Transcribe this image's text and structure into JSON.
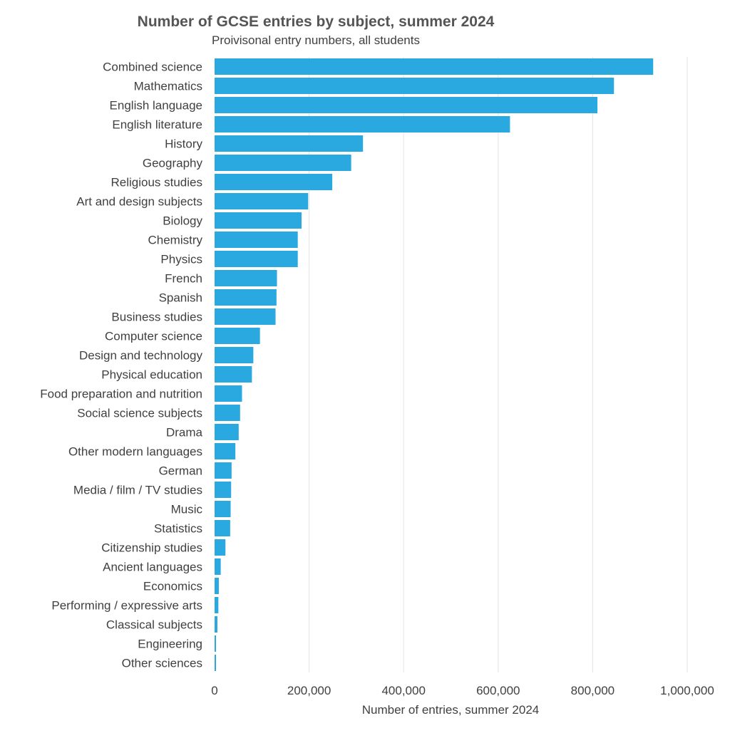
{
  "chart_data": {
    "type": "bar",
    "orientation": "horizontal",
    "title": "Number of GCSE entries by subject, summer 2024",
    "subtitle": "Proivisonal entry numbers, all students",
    "xlabel": "Number of entries, summer 2024",
    "ylabel": "",
    "xlim": [
      0,
      1000000
    ],
    "xticks": [
      0,
      200000,
      400000,
      600000,
      800000,
      1000000
    ],
    "xtick_labels": [
      "0",
      "200,000",
      "400,000",
      "600,000",
      "800,000",
      "1,000,000"
    ],
    "grid": "vertical",
    "legend": "none",
    "categories": [
      "Combined science",
      "Mathematics",
      "English language",
      "English literature",
      "History",
      "Geography",
      "Religious studies",
      "Art and design subjects",
      "Biology",
      "Chemistry",
      "Physics",
      "French",
      "Spanish",
      "Business studies",
      "Computer science",
      "Design and technology",
      "Physical education",
      "Food preparation and nutrition",
      "Social science subjects",
      "Drama",
      "Other modern languages",
      "German",
      "Media / film / TV studies",
      "Music",
      "Statistics",
      "Citizenship studies",
      "Ancient languages",
      "Economics",
      "Performing / expressive arts",
      "Classical subjects",
      "Engineering",
      "Other sciences"
    ],
    "values": [
      928000,
      845000,
      810000,
      625000,
      314000,
      289000,
      249000,
      198000,
      184000,
      176000,
      176000,
      132000,
      131000,
      129000,
      96000,
      82000,
      79000,
      58000,
      54000,
      51000,
      44000,
      36000,
      35000,
      34000,
      33000,
      23000,
      13000,
      9000,
      8000,
      6000,
      3000,
      3000
    ],
    "colors": {
      "bar": "#2aa9e0",
      "grid": "#e3e3e3",
      "text": "#404040",
      "title": "#555555"
    }
  }
}
